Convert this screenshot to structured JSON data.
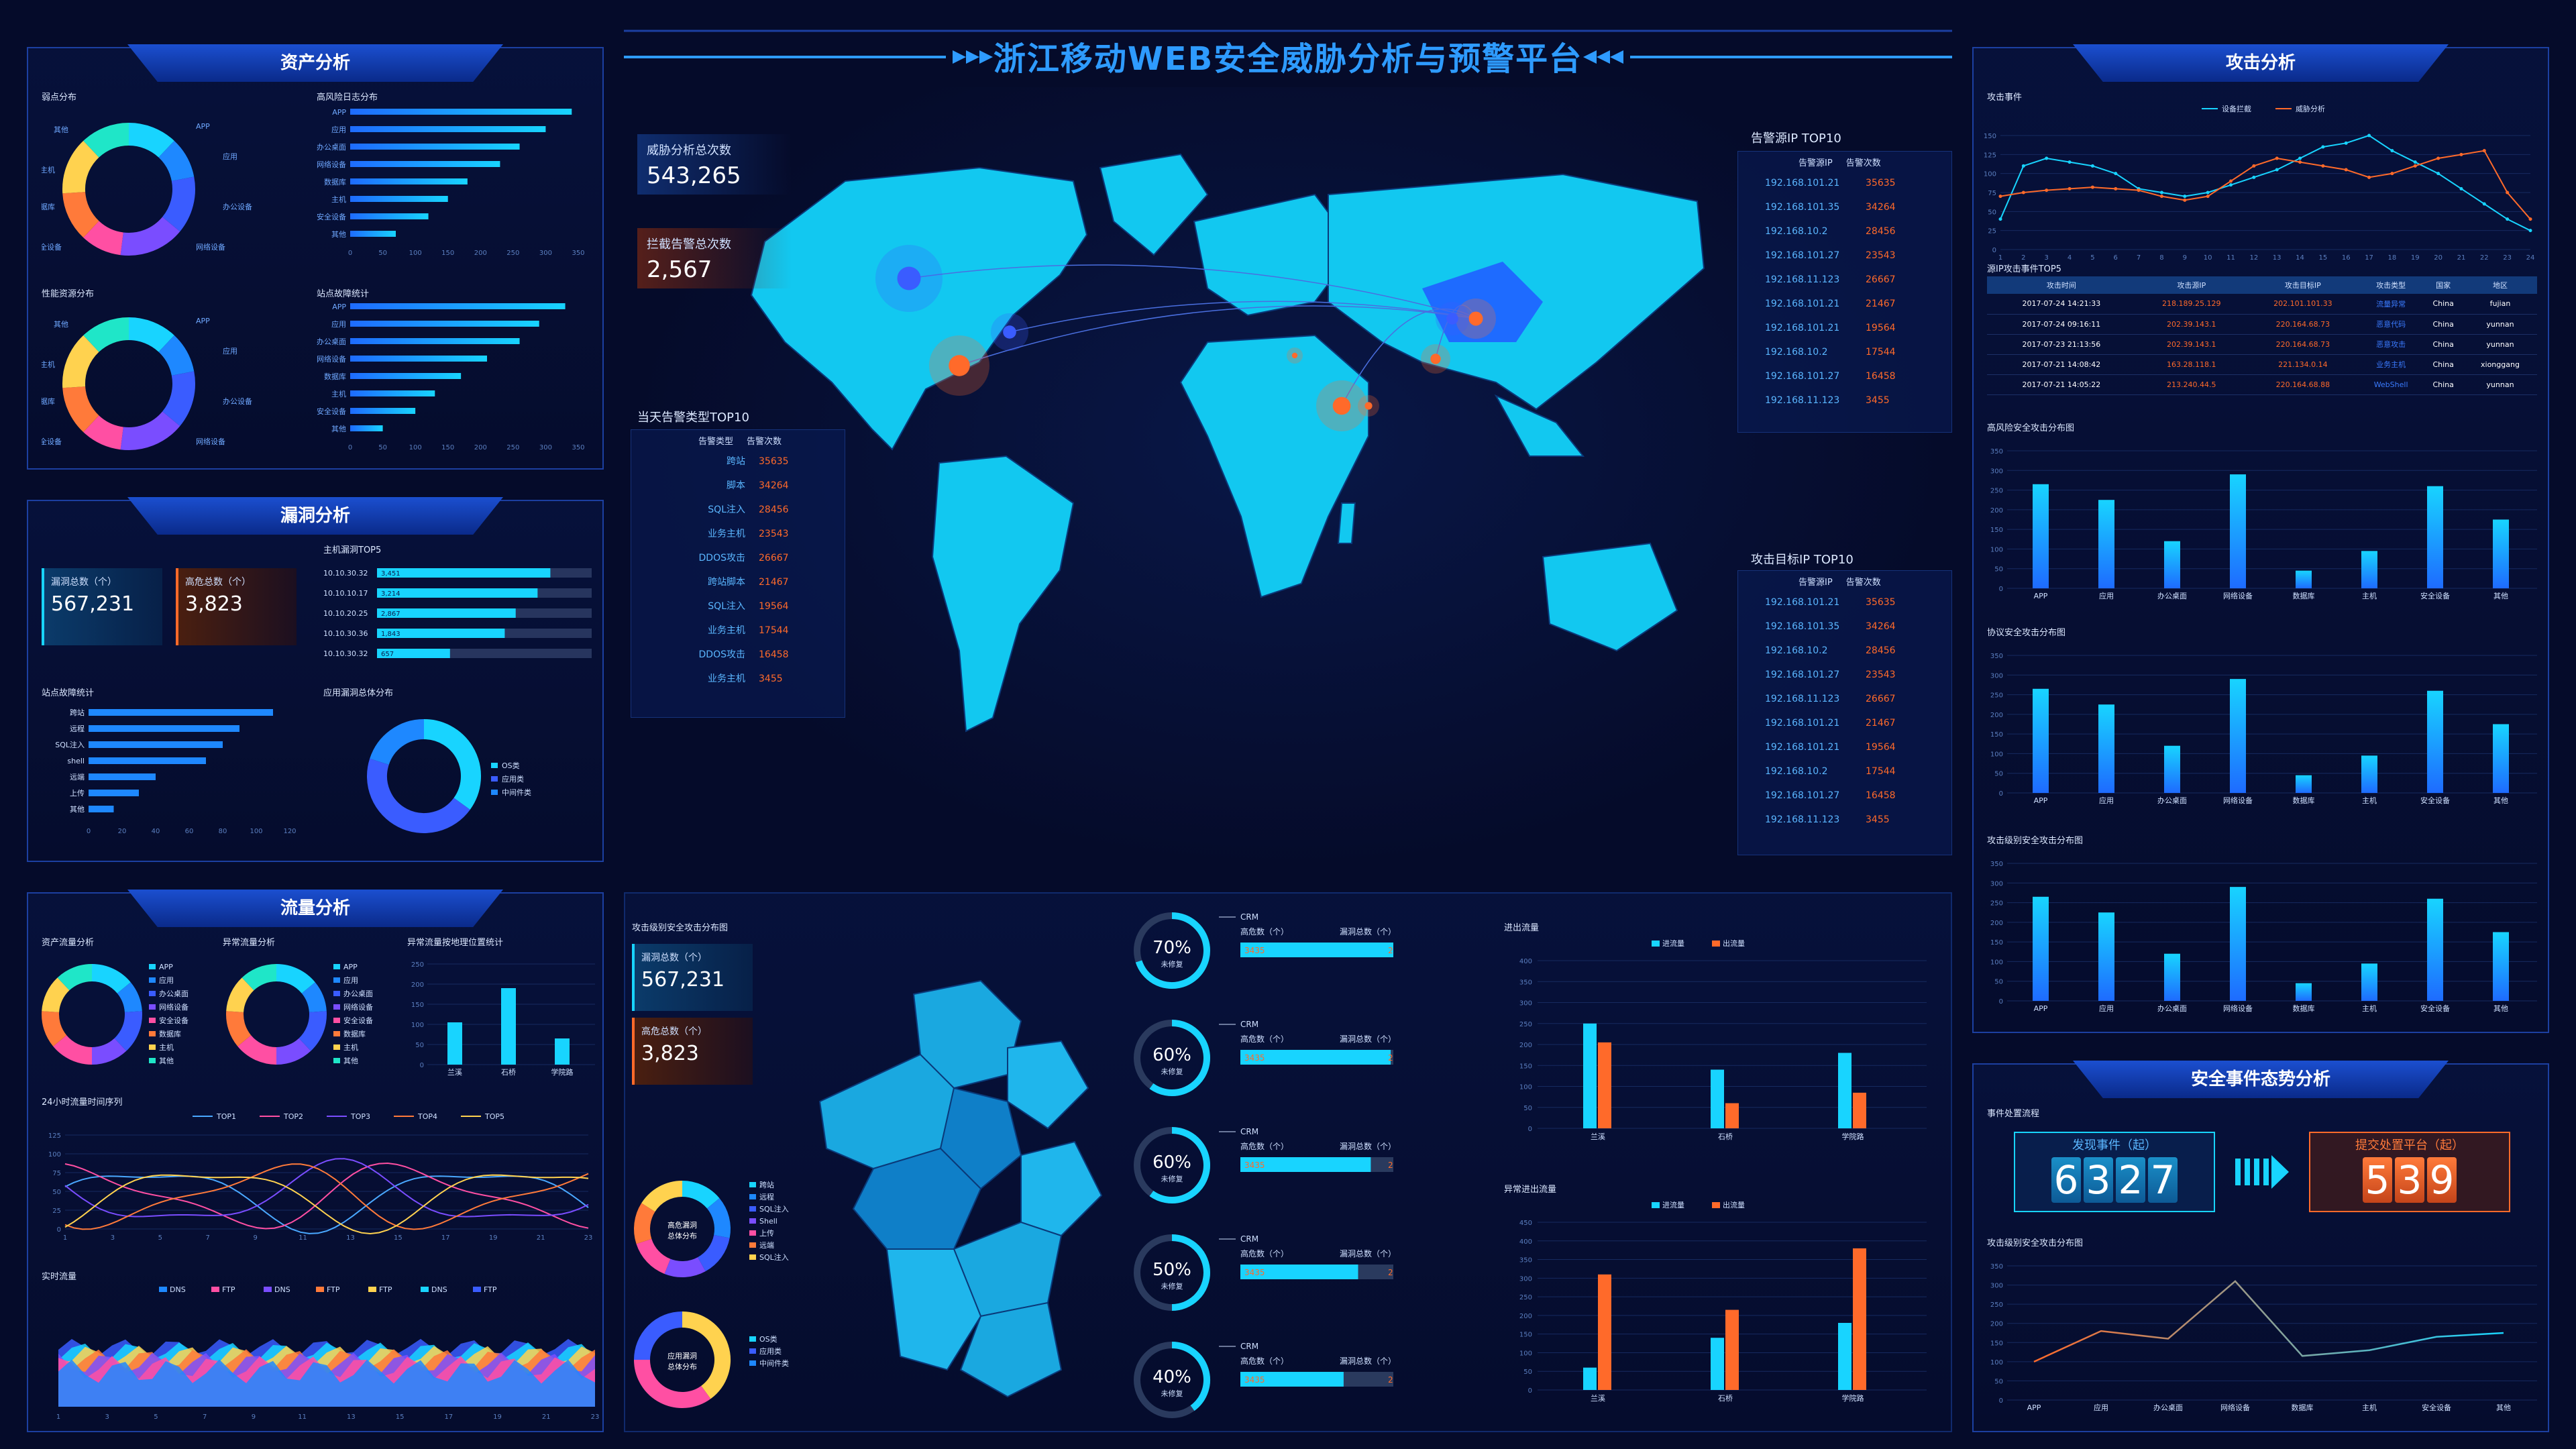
{
  "title": "浙江移动WEB安全威胁分析与预警平台",
  "asset": {
    "title": "资产分析",
    "weak_title": "弱点分布",
    "risk_log_title": "高风险日志分布",
    "perf_title": "性能资源分布",
    "site_fail_title": "站点故障统计",
    "donut_labels": [
      "APP",
      "应用",
      "办公设备",
      "网络设备",
      "安全设备",
      "数据库",
      "主机",
      "其他"
    ],
    "risk_bars": {
      "categories": [
        "APP",
        "应用",
        "办公桌面",
        "网络设备",
        "数据库",
        "主机",
        "安全设备",
        "其他"
      ],
      "values": [
        340,
        300,
        260,
        230,
        180,
        150,
        120,
        70
      ],
      "ticks": [
        "0",
        "50",
        "100",
        "150",
        "200",
        "250",
        "300",
        "350"
      ]
    },
    "fail_bars": {
      "categories": [
        "APP",
        "应用",
        "办公桌面",
        "网络设备",
        "数据库",
        "主机",
        "安全设备",
        "其他"
      ],
      "values": [
        330,
        290,
        260,
        210,
        170,
        130,
        100,
        50
      ],
      "ticks": [
        "0",
        "50",
        "100",
        "150",
        "200",
        "250",
        "300",
        "350"
      ]
    }
  },
  "vuln": {
    "title": "漏洞分析",
    "total_label": "漏洞总数（个）",
    "total_value": "567,231",
    "high_label": "高危总数（个）",
    "high_value": "3,823",
    "host_top_title": "主机漏洞TOP5",
    "host_rows": [
      {
        "ip": "10.10.30.32",
        "v": "3,451",
        "p": 0.95
      },
      {
        "ip": "10.10.10.17",
        "v": "3,214",
        "p": 0.88
      },
      {
        "ip": "10.10.20.25",
        "v": "2,867",
        "p": 0.76
      },
      {
        "ip": "10.10.30.36",
        "v": "1,843",
        "p": 0.7
      },
      {
        "ip": "10.10.30.32",
        "v": "657",
        "p": 0.4
      }
    ],
    "site_title": "站点故障统计",
    "site_bars": {
      "categories": [
        "跨站",
        "远程",
        "SQL注入",
        "shell",
        "远端",
        "上传",
        "其他"
      ],
      "values": [
        110,
        90,
        80,
        70,
        40,
        30,
        15
      ],
      "ticks": [
        "0",
        "20",
        "40",
        "60",
        "80",
        "100",
        "120"
      ]
    },
    "app_dist_title": "应用漏洞总体分布",
    "app_legend": [
      "OS类",
      "应用类",
      "中间件类"
    ]
  },
  "traffic": {
    "title": "流量分析",
    "asset_flow_title": "资产流量分析",
    "abn_flow_title": "异常流量分析",
    "abn_geo_title": "异常流量按地理位置统计",
    "donut_legend": [
      "APP",
      "应用",
      "办公桌面",
      "网络设备",
      "安全设备",
      "数据库",
      "主机",
      "其他"
    ],
    "geo_bars": {
      "categories": [
        "兰溪",
        "石桥",
        "学院路"
      ],
      "values": [
        105,
        190,
        65
      ],
      "ticks": [
        "0",
        "50",
        "100",
        "150",
        "200",
        "250"
      ]
    },
    "series_title": "24小时流量时间序列",
    "series_legend": [
      "TOP1",
      "TOP2",
      "TOP3",
      "TOP4",
      "TOP5"
    ],
    "x_ticks": [
      "1",
      "3",
      "5",
      "7",
      "9",
      "11",
      "13",
      "15",
      "17",
      "19",
      "21",
      "23"
    ],
    "y_ticks": [
      "0",
      "25",
      "50",
      "75",
      "100",
      "125"
    ],
    "realtime_title": "实时流量",
    "realtime_legend": [
      "DNS",
      "FTP",
      "DNS",
      "FTP",
      "FTP",
      "DNS",
      "FTP"
    ]
  },
  "map": {
    "threat_label": "威胁分析总次数",
    "threat_value": "543,265",
    "block_label": "拦截告警总次数",
    "block_value": "2,567",
    "alert_type_title": "当天告警类型TOP10",
    "alert_type_head": [
      "告警类型",
      "告警次数"
    ],
    "alert_types": [
      {
        "k": "跨站",
        "v": "35635"
      },
      {
        "k": "脚本",
        "v": "34264"
      },
      {
        "k": "SQL注入",
        "v": "28456"
      },
      {
        "k": "业务主机",
        "v": "23543"
      },
      {
        "k": "DDOS攻击",
        "v": "26667"
      },
      {
        "k": "跨站脚本",
        "v": "21467"
      },
      {
        "k": "SQL注入",
        "v": "19564"
      },
      {
        "k": "业务主机",
        "v": "17544"
      },
      {
        "k": "DDOS攻击",
        "v": "16458"
      },
      {
        "k": "业务主机",
        "v": "3455"
      }
    ],
    "src_title": "告警源IP TOP10",
    "src_head": [
      "告警源IP",
      "告警次数"
    ],
    "dst_title": "攻击目标IP TOP10",
    "dst_head": [
      "告警源IP",
      "告警次数"
    ],
    "ips": [
      {
        "ip": "192.168.101.21",
        "v": "35635"
      },
      {
        "ip": "192.168.101.35",
        "v": "34264"
      },
      {
        "ip": "192.168.10.2",
        "v": "28456"
      },
      {
        "ip": "192.168.101.27",
        "v": "23543"
      },
      {
        "ip": "192.168.11.123",
        "v": "26667"
      },
      {
        "ip": "192.168.101.21",
        "v": "21467"
      },
      {
        "ip": "192.168.101.21",
        "v": "19564"
      },
      {
        "ip": "192.168.10.2",
        "v": "17544"
      },
      {
        "ip": "192.168.101.27",
        "v": "16458"
      },
      {
        "ip": "192.168.11.123",
        "v": "3455"
      }
    ]
  },
  "zhejiang": {
    "title": "攻击级别安全攻击分布图",
    "total_label": "漏洞总数（个）",
    "total_value": "567,231",
    "high_label": "高危总数（个）",
    "high_value": "3,823",
    "donut1_center": "高危漏洞总体分布",
    "donut1_legend": [
      "跨站",
      "远程",
      "SQL注入",
      "Shell",
      "上传",
      "远端",
      "SQL注入"
    ],
    "donut2_center": "应用漏洞总体分布",
    "donut2_legend": [
      "OS类",
      "应用类",
      "中间件类"
    ],
    "gauges": [
      {
        "pct": "70%",
        "p": 0.7,
        "sub": "未修复",
        "name": "CRM",
        "l1": "高危数（个）",
        "l2": "漏洞总数（个）",
        "a": "3435",
        "b": "2345",
        "fill": 0.96
      },
      {
        "pct": "60%",
        "p": 0.6,
        "sub": "未修复",
        "name": "CRM",
        "l1": "高危数（个）",
        "l2": "漏洞总数（个）",
        "a": "3435",
        "b": "2345",
        "fill": 0.83
      },
      {
        "pct": "60%",
        "p": 0.6,
        "sub": "未修复",
        "name": "CRM",
        "l1": "高危数（个）",
        "l2": "漏洞总数（个）",
        "a": "3435",
        "b": "2345",
        "fill": 0.72
      },
      {
        "pct": "50%",
        "p": 0.5,
        "sub": "未修复",
        "name": "CRM",
        "l1": "高危数（个）",
        "l2": "漏洞总数（个）",
        "a": "3435",
        "b": "2345",
        "fill": 0.65
      },
      {
        "pct": "40%",
        "p": 0.4,
        "sub": "未修复",
        "name": "CRM",
        "l1": "高危数（个）",
        "l2": "漏洞总数（个）",
        "a": "3435",
        "b": "2345",
        "fill": 0.57
      }
    ]
  },
  "inout": {
    "title": "进出流量",
    "legend": [
      "进流量",
      "出流量"
    ],
    "categories": [
      "兰溪",
      "石桥",
      "学院路"
    ],
    "in_values": [
      250,
      140,
      180
    ],
    "out_values": [
      205,
      60,
      85
    ],
    "ticks": [
      "0",
      "50",
      "100",
      "150",
      "200",
      "250",
      "300",
      "350",
      "400"
    ],
    "abn_title": "异常进出流量",
    "abn_legend": [
      "进流量",
      "出流量"
    ],
    "abn_in": [
      60,
      140,
      180
    ],
    "abn_out": [
      310,
      215,
      380
    ],
    "abn_ticks": [
      "0",
      "50",
      "100",
      "150",
      "200",
      "250",
      "300",
      "350",
      "400",
      "450"
    ]
  },
  "attack": {
    "title": "攻击分析",
    "events_title": "攻击事件",
    "legend": [
      "设备拦截",
      "威胁分析"
    ],
    "x_ticks": [
      "1",
      "2",
      "3",
      "4",
      "5",
      "6",
      "7",
      "8",
      "9",
      "10",
      "11",
      "12",
      "13",
      "14",
      "15",
      "16",
      "17",
      "18",
      "19",
      "20",
      "21",
      "22",
      "23",
      "24"
    ],
    "y_ticks": [
      "0",
      "25",
      "50",
      "75",
      "100",
      "125",
      "150"
    ],
    "top5_title": "源IP攻击事件TOP5",
    "top5_head": [
      "攻击时间",
      "攻击源IP",
      "攻击目标IP",
      "攻击类型",
      "国家",
      "地区"
    ],
    "top5_rows": [
      [
        "2017-07-24 14:21:33",
        "218.189.25.129",
        "202.101.101.33",
        "流量异常",
        "China",
        "fujian"
      ],
      [
        "2017-07-24 09:16:11",
        "202.39.143.1",
        "220.164.68.73",
        "恶意代码",
        "China",
        "yunnan"
      ],
      [
        "2017-07-23 21:13:56",
        "202.39.143.1",
        "220.164.68.73",
        "恶意攻击",
        "China",
        "yunnan"
      ],
      [
        "2017-07-21 14:08:42",
        "163.28.118.1",
        "221.134.0.14",
        "业务主机",
        "China",
        "xionggang"
      ],
      [
        "2017-07-21 14:05:22",
        "213.240.44.5",
        "220.164.68.88",
        "WebShell",
        "China",
        "yunnan"
      ]
    ],
    "risk_title": "高风险安全攻击分布图",
    "proto_title": "协议安全攻击分布图",
    "level_title": "攻击级别安全攻击分布图",
    "bar_categories": [
      "APP",
      "应用",
      "办公桌面",
      "网络设备",
      "数据库",
      "主机",
      "安全设备",
      "其他"
    ],
    "bar_values": [
      265,
      225,
      120,
      290,
      45,
      95,
      260,
      175
    ],
    "bar_ticks": [
      "0",
      "50",
      "100",
      "150",
      "200",
      "250",
      "300",
      "350"
    ]
  },
  "trend": {
    "title": "安全事件态势分析",
    "flow_title": "事件处置流程",
    "found_label": "发现事件（起）",
    "found_digits": [
      "6",
      "3",
      "2",
      "7"
    ],
    "submit_label": "提交处置平台（起）",
    "submit_digits": [
      "5",
      "3",
      "9"
    ],
    "chart_title": "攻击级别安全攻击分布图",
    "categories": [
      "APP",
      "应用",
      "办公桌面",
      "网络设备",
      "数据库",
      "主机",
      "安全设备",
      "其他"
    ],
    "values": [
      100,
      180,
      160,
      310,
      115,
      130,
      165,
      175
    ],
    "ticks": [
      "0",
      "50",
      "100",
      "150",
      "200",
      "250",
      "300",
      "350"
    ]
  },
  "colors": {
    "cyan": "#18d4ff",
    "orange": "#ff6a2a",
    "blue": "#1c3fa0",
    "accent": "#2e9bff"
  },
  "chart_data": [
    {
      "type": "bar",
      "title": "高风险安全攻击分布图",
      "categories": [
        "APP",
        "应用",
        "办公桌面",
        "网络设备",
        "数据库",
        "主机",
        "安全设备",
        "其他"
      ],
      "values": [
        265,
        225,
        120,
        290,
        45,
        95,
        260,
        175
      ],
      "ylim": [
        0,
        350
      ]
    },
    {
      "type": "bar",
      "title": "进出流量",
      "categories": [
        "兰溪",
        "石桥",
        "学院路"
      ],
      "series": [
        {
          "name": "进流量",
          "values": [
            250,
            140,
            180
          ]
        },
        {
          "name": "出流量",
          "values": [
            205,
            60,
            85
          ]
        }
      ],
      "ylim": [
        0,
        400
      ]
    },
    {
      "type": "line",
      "title": "攻击事件",
      "x": [
        1,
        2,
        3,
        4,
        5,
        6,
        7,
        8,
        9,
        10,
        11,
        12,
        13,
        14,
        15,
        16,
        17,
        18,
        19,
        20,
        21,
        22,
        23,
        24
      ],
      "series": [
        {
          "name": "设备拦截",
          "values": [
            40,
            110,
            120,
            115,
            110,
            100,
            80,
            75,
            70,
            75,
            85,
            95,
            105,
            120,
            135,
            140,
            150,
            130,
            115,
            100,
            80,
            60,
            40,
            25
          ]
        },
        {
          "name": "威胁分析",
          "values": [
            70,
            75,
            78,
            80,
            82,
            80,
            78,
            70,
            65,
            70,
            90,
            110,
            120,
            115,
            110,
            105,
            95,
            100,
            110,
            120,
            125,
            130,
            75,
            40
          ]
        }
      ],
      "ylim": [
        0,
        150
      ]
    },
    {
      "type": "line",
      "title": "攻击级别安全攻击分布图",
      "categories": [
        "APP",
        "应用",
        "办公桌面",
        "网络设备",
        "数据库",
        "主机",
        "安全设备",
        "其他"
      ],
      "values": [
        100,
        180,
        160,
        310,
        115,
        130,
        165,
        175
      ],
      "ylim": [
        0,
        350
      ]
    }
  ]
}
